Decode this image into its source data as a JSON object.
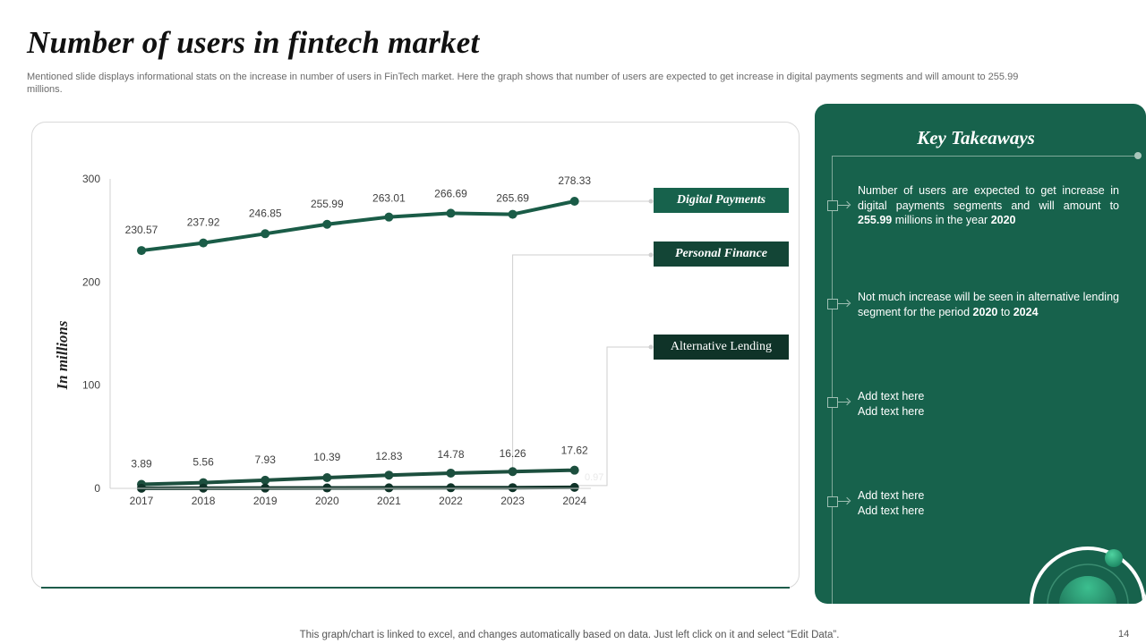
{
  "slide": {
    "title": "Number of users in fintech market",
    "subtitle": "Mentioned slide displays informational stats on the increase in number of users in FinTech market. Here the graph shows that number of users are expected to get increase in digital payments segments and will amount to 255.99 millions.",
    "footer": "This graph/chart is linked to excel, and changes automatically based on data. Just left click on it and select “Edit Data”.",
    "page_number": "14"
  },
  "chart_data": {
    "type": "line",
    "categories": [
      "2017",
      "2018",
      "2019",
      "2020",
      "2021",
      "2022",
      "2023",
      "2024"
    ],
    "ylabel": "In millions",
    "ylim": [
      0,
      300
    ],
    "yticks": [
      0,
      100,
      200,
      300
    ],
    "grid": false,
    "series": [
      {
        "name": "Digital Payments",
        "values": [
          230.57,
          237.92,
          246.85,
          255.99,
          263.01,
          266.69,
          265.69,
          278.33
        ],
        "labels": [
          "230.57",
          "237.92",
          "246.85",
          "255.99",
          "263.01",
          "266.69",
          "265.69",
          "278.33"
        ],
        "color": "#1a5c47"
      },
      {
        "name": "Personal Finance",
        "values": [
          3.89,
          5.56,
          7.93,
          10.39,
          12.83,
          14.78,
          16.26,
          17.62
        ],
        "labels": [
          "3.89",
          "5.56",
          "7.93",
          "10.39",
          "12.83",
          "14.78",
          "16.26",
          "17.62"
        ],
        "color": "#1c4f3e"
      },
      {
        "name": "Alternative Lending",
        "values": [
          0.1,
          0.2,
          0.3,
          0.4,
          0.5,
          0.6,
          0.7,
          0.97
        ],
        "labels": [
          "",
          "",
          "",
          "",
          "",
          "",
          "",
          "0.97"
        ],
        "color": "#0f3328"
      }
    ]
  },
  "legend_labels": {
    "digital": "Digital Payments",
    "personal": "Personal Finance",
    "lending": "Alternative Lending"
  },
  "colors": {
    "digital_bg": "#17624c",
    "personal_bg": "#134536",
    "lending_bg": "#0f3328"
  },
  "takeaways": {
    "title": "Key Takeaways",
    "t1_a": "Number of users are expected to get increase in digital payments segments and will amount to ",
    "t1_b": "255.99",
    "t1_c": " millions in the year ",
    "t1_d": "2020",
    "t2_a": "Not much increase will be seen in alternative lending segment for the period ",
    "t2_b": "2020",
    "t2_c": " to ",
    "t2_d": "2024",
    "t3_line1": "Add text here",
    "t3_line2": "Add text here",
    "t4_line1": "Add text here",
    "t4_line2": "Add text here"
  }
}
